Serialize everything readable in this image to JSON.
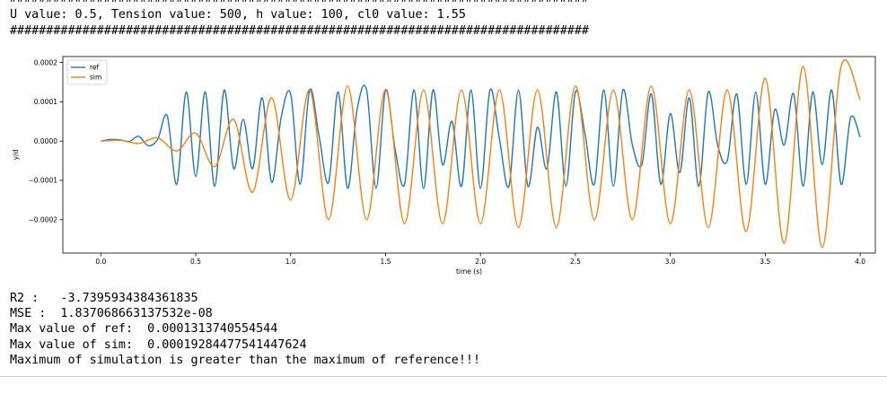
{
  "header": {
    "hash_line": "################################################################################",
    "params_line": "U value: 0.5, Tension value: 500, h value: 100, cl0 value: 1.55"
  },
  "chart_data": {
    "type": "line",
    "title": "",
    "xlabel": "time (s)",
    "ylabel": "y/d",
    "xlim": [
      -0.2,
      4.08
    ],
    "ylim": [
      -0.000285,
      0.000215
    ],
    "x_ticks": [
      0.0,
      0.5,
      1.0,
      1.5,
      2.0,
      2.5,
      3.0,
      3.5,
      4.0
    ],
    "x_tick_labels": [
      "0.0",
      "0.5",
      "1.0",
      "1.5",
      "2.0",
      "2.5",
      "3.0",
      "3.5",
      "4.0"
    ],
    "y_ticks": [
      -0.0002,
      -0.0001,
      0.0,
      0.0001,
      0.0002
    ],
    "y_tick_labels": [
      "−0.0002",
      "−0.0001",
      "0.0000",
      "0.0001",
      "0.0002"
    ],
    "grid": false,
    "legend_position": "top-left",
    "series": [
      {
        "name": "ref",
        "color": "#1f77b4",
        "x": [
          0.0,
          0.05,
          0.1,
          0.15,
          0.2,
          0.25,
          0.3,
          0.35,
          0.4,
          0.45,
          0.5,
          0.55,
          0.6,
          0.65,
          0.7,
          0.75,
          0.8,
          0.85,
          0.9,
          0.95,
          1.0,
          1.05,
          1.1,
          1.15,
          1.2,
          1.25,
          1.3,
          1.35,
          1.4,
          1.45,
          1.5,
          1.55,
          1.6,
          1.65,
          1.7,
          1.75,
          1.8,
          1.85,
          1.9,
          1.95,
          2.0,
          2.05,
          2.1,
          2.15,
          2.2,
          2.25,
          2.3,
          2.35,
          2.4,
          2.45,
          2.5,
          2.55,
          2.6,
          2.65,
          2.7,
          2.75,
          2.8,
          2.85,
          2.9,
          2.95,
          3.0,
          3.05,
          3.1,
          3.15,
          3.2,
          3.25,
          3.3,
          3.35,
          3.4,
          3.45,
          3.5,
          3.55,
          3.6,
          3.65,
          3.7,
          3.75,
          3.8,
          3.85,
          3.9,
          3.95,
          4.0
        ],
        "values": [
          0.0,
          4e-06,
          3e-06,
          -1e-06,
          1.2e-05,
          -1.2e-05,
          5e-06,
          6.4e-05,
          -0.00011,
          0.000125,
          -9e-05,
          0.000125,
          -0.000115,
          0.00013,
          -7e-05,
          5.5e-05,
          -7e-05,
          0.00011,
          -0.000105,
          6e-05,
          0.00012,
          -0.00011,
          0.00013,
          1.2e-05,
          -0.000105,
          0.000125,
          -0.00012,
          8e-05,
          0.00013,
          -0.00012,
          0.00013,
          -2e-05,
          -0.00011,
          0.00013,
          -0.00012,
          0.00013,
          -6e-05,
          5e-05,
          -0.000115,
          0.00013,
          -0.00012,
          0.00013,
          5e-06,
          -0.000115,
          0.00013,
          -0.000115,
          3.5e-05,
          -7e-05,
          0.000125,
          -0.000115,
          0.000125,
          2e-05,
          -0.00011,
          0.00013,
          -0.000115,
          0.00013,
          -1e-05,
          -6e-05,
          0.00012,
          -0.00011,
          7e-05,
          -8e-05,
          0.00011,
          -0.000115,
          0.000125,
          -1.2e-05,
          -5e-05,
          0.00012,
          -0.00011,
          0.000125,
          -0.00011,
          8e-05,
          -1e-05,
          0.00012,
          -0.000115,
          0.000125,
          -6e-05,
          0.00013,
          -0.00011,
          6e-05,
          1e-05
        ]
      },
      {
        "name": "sim",
        "color": "#ff7f0e",
        "x": [
          0.0,
          0.1,
          0.2,
          0.3,
          0.4,
          0.5,
          0.6,
          0.7,
          0.8,
          0.9,
          1.0,
          1.1,
          1.2,
          1.3,
          1.4,
          1.5,
          1.6,
          1.7,
          1.8,
          1.9,
          2.0,
          2.1,
          2.2,
          2.3,
          2.4,
          2.5,
          2.6,
          2.7,
          2.8,
          2.9,
          3.0,
          3.1,
          3.2,
          3.3,
          3.4,
          3.5,
          3.6,
          3.7,
          3.8,
          3.9,
          4.0
        ],
        "values": [
          0.0,
          2e-06,
          -6e-06,
          8e-06,
          -2.5e-05,
          2e-05,
          -6.5e-05,
          5.5e-05,
          -0.00013,
          0.00011,
          -0.00015,
          0.00013,
          -0.0002,
          0.00014,
          -0.0002,
          0.00013,
          -0.00021,
          0.00013,
          -0.00021,
          0.00013,
          -0.00021,
          0.00013,
          -0.00022,
          0.00013,
          -0.00022,
          0.00014,
          -0.0002,
          0.00013,
          -0.0002,
          0.00014,
          -0.00021,
          0.00013,
          -0.00022,
          0.00013,
          -0.00023,
          0.00016,
          -0.00026,
          0.00019,
          -0.00027,
          0.00019,
          0.000105
        ]
      }
    ]
  },
  "stats": {
    "r2": "R2 :   -3.7395934384361835",
    "mse": "MSE :  1.837068663137532e-08",
    "max_ref": "Max value of ref:  0.0001313740554544",
    "max_sim": "Max value of sim:  0.00019284477541447624",
    "conclusion": "Maximum of simulation is greater than the maximum of reference!!!"
  }
}
